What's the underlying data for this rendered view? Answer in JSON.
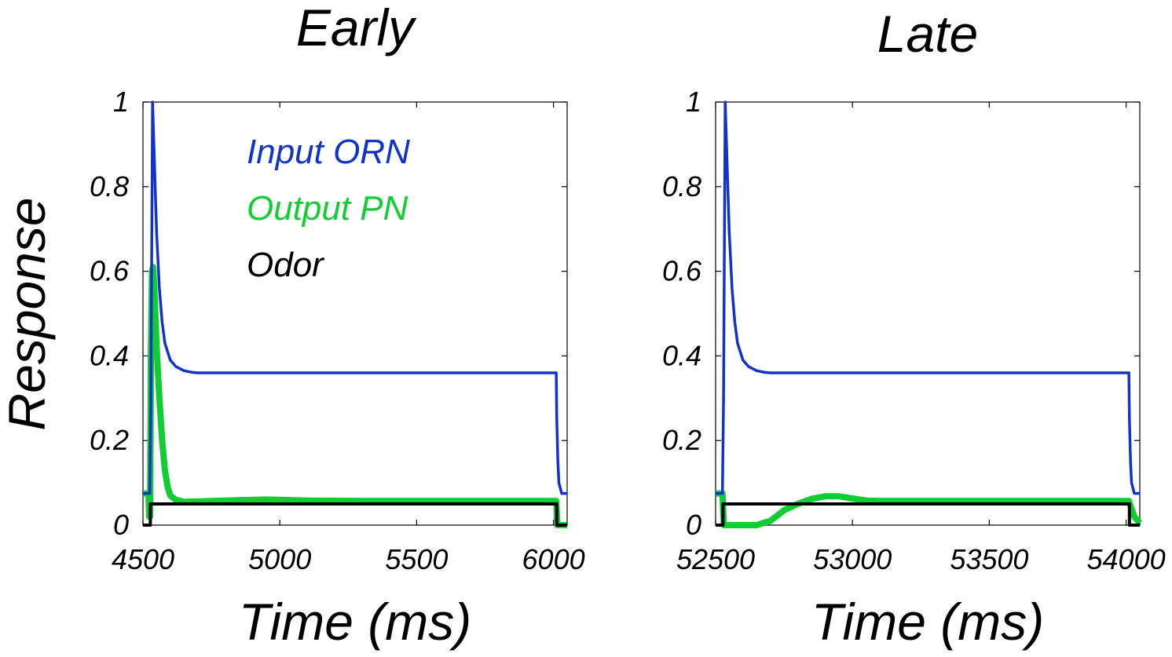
{
  "chart_data": [
    {
      "type": "line",
      "title": "Early",
      "xlabel": "Time (ms)",
      "ylabel": "Response",
      "xlim": [
        4500,
        6050
      ],
      "ylim": [
        0,
        1
      ],
      "xticks": [
        4500,
        5000,
        5500,
        6000
      ],
      "xtick_labels": [
        "4500",
        "5000",
        "5500",
        "6000"
      ],
      "yticks": [
        0,
        0.2,
        0.4,
        0.6,
        0.8,
        1
      ],
      "ytick_labels": [
        "0",
        "0.2",
        "0.4",
        "0.6",
        "0.8",
        "1"
      ],
      "grid": false,
      "legend": {
        "placement": "top-center, inside plot",
        "entries": [
          "Input ORN",
          "Output PN",
          "Odor"
        ]
      },
      "series": [
        {
          "name": "Input ORN",
          "color": "#1133cc",
          "x": [
            4500,
            4525,
            4529,
            4535,
            4540,
            4545,
            4550,
            4560,
            4570,
            4580,
            4600,
            4620,
            4650,
            4680,
            4700,
            4800,
            5000,
            5500,
            6010,
            6012,
            6016,
            6020,
            6030,
            6050
          ],
          "y": [
            0.075,
            0.075,
            0.3,
            1.0,
            0.9,
            0.79,
            0.69,
            0.56,
            0.48,
            0.43,
            0.39,
            0.375,
            0.365,
            0.361,
            0.36,
            0.36,
            0.36,
            0.36,
            0.36,
            0.25,
            0.15,
            0.1,
            0.075,
            0.075
          ]
        },
        {
          "name": "Output PN",
          "color": "#11cc33",
          "x": [
            4500,
            4520,
            4523,
            4526,
            4529,
            4533,
            4537,
            4541,
            4545,
            4550,
            4560,
            4570,
            4580,
            4590,
            4600,
            4620,
            4650,
            4700,
            4800,
            4900,
            4950,
            5000,
            5100,
            5300,
            5500,
            5800,
            6010,
            6014,
            6020,
            6050
          ],
          "y": [
            0.075,
            0.075,
            0.02,
            0.02,
            0.4,
            0.6,
            0.61,
            0.57,
            0.5,
            0.42,
            0.3,
            0.2,
            0.13,
            0.09,
            0.07,
            0.06,
            0.055,
            0.056,
            0.058,
            0.06,
            0.0605,
            0.06,
            0.058,
            0.057,
            0.057,
            0.057,
            0.057,
            0.0,
            0.0,
            0.0
          ]
        },
        {
          "name": "Odor",
          "color": "#000000",
          "x": [
            4500,
            4527,
            4527,
            6012,
            6012,
            6050
          ],
          "y": [
            0,
            0,
            0.05,
            0.05,
            0,
            0
          ]
        }
      ]
    },
    {
      "type": "line",
      "title": "Late",
      "xlabel": "Time (ms)",
      "ylabel": "",
      "xlim": [
        52500,
        54050
      ],
      "ylim": [
        0,
        1
      ],
      "xticks": [
        52500,
        53000,
        53500,
        54000
      ],
      "xtick_labels": [
        "52500",
        "53000",
        "53500",
        "54000"
      ],
      "yticks": [
        0,
        0.2,
        0.4,
        0.6,
        0.8,
        1
      ],
      "ytick_labels": [
        "0",
        "0.2",
        "0.4",
        "0.6",
        "0.8",
        "1"
      ],
      "grid": false,
      "series": [
        {
          "name": "Input ORN",
          "color": "#1133cc",
          "x": [
            52500,
            52525,
            52529,
            52535,
            52540,
            52545,
            52550,
            52560,
            52570,
            52580,
            52600,
            52620,
            52650,
            52680,
            52700,
            52800,
            53000,
            53500,
            54010,
            54012,
            54016,
            54020,
            54030,
            54050
          ],
          "y": [
            0.075,
            0.075,
            0.3,
            1.0,
            0.9,
            0.79,
            0.69,
            0.56,
            0.48,
            0.43,
            0.39,
            0.375,
            0.365,
            0.361,
            0.36,
            0.36,
            0.36,
            0.36,
            0.36,
            0.25,
            0.15,
            0.1,
            0.075,
            0.075
          ]
        },
        {
          "name": "Output PN",
          "color": "#11cc33",
          "x": [
            52500,
            52525,
            52530,
            52600,
            52650,
            52700,
            52750,
            52800,
            52850,
            52900,
            52950,
            53000,
            53050,
            53100,
            53500,
            54000,
            54010,
            54030,
            54050
          ],
          "y": [
            0.075,
            0.075,
            0.0,
            0.0,
            0.0,
            0.01,
            0.035,
            0.05,
            0.062,
            0.068,
            0.068,
            0.063,
            0.058,
            0.057,
            0.057,
            0.057,
            0.057,
            0.02,
            0.005
          ]
        },
        {
          "name": "Odor",
          "color": "#000000",
          "x": [
            52500,
            52527,
            52527,
            54012,
            54012,
            54050
          ],
          "y": [
            0,
            0,
            0.05,
            0.05,
            0,
            0
          ]
        }
      ]
    }
  ]
}
